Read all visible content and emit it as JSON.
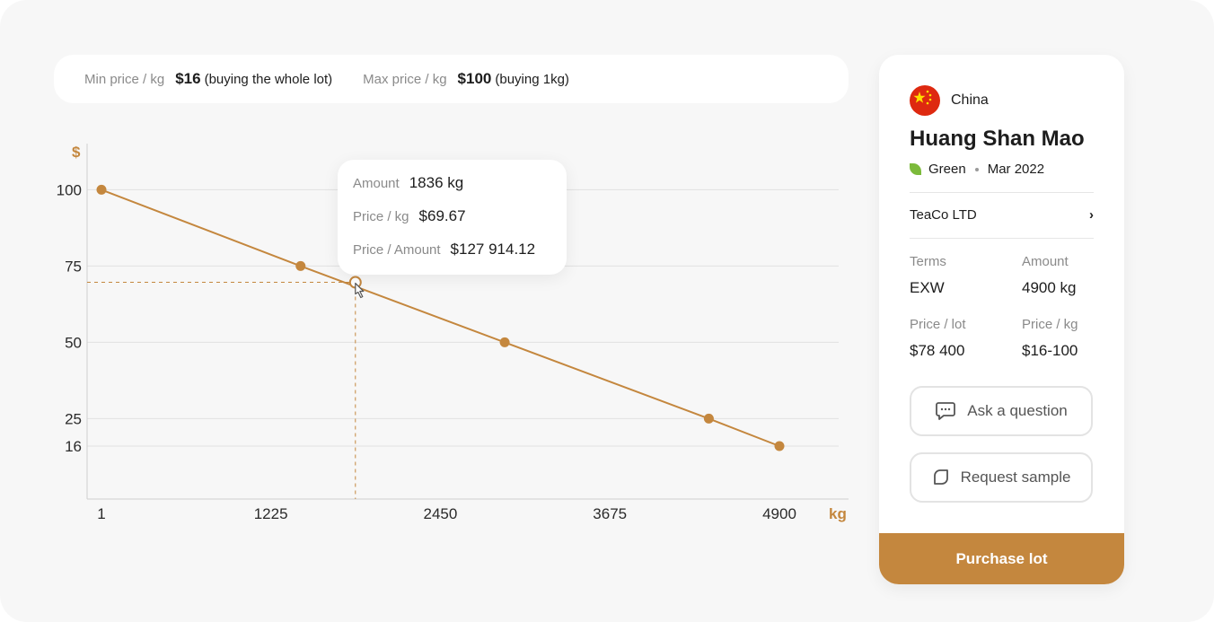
{
  "price_bar": {
    "min_label": "Min price / kg",
    "min_value": "$16",
    "min_note": "(buying the whole lot)",
    "max_label": "Max price / kg",
    "max_value": "$100",
    "max_note": "(buying 1kg)"
  },
  "chart_data": {
    "type": "line",
    "y_unit": "$",
    "x_unit": "kg",
    "x_ticks": [
      1,
      1225,
      2450,
      3675,
      4900
    ],
    "y_ticks": [
      16,
      25,
      50,
      75,
      100
    ],
    "xlim": [
      1,
      4900
    ],
    "ylim": [
      16,
      100
    ],
    "grid": true,
    "points": [
      {
        "x": 1,
        "y": 100
      },
      {
        "x": 1440,
        "y": 75
      },
      {
        "x": 2915,
        "y": 50
      },
      {
        "x": 4390,
        "y": 25
      },
      {
        "x": 4900,
        "y": 16
      }
    ],
    "hover_point": {
      "x": 1836,
      "y": 69.67
    },
    "color": "#c4873e"
  },
  "tooltip": {
    "amount_label": "Amount",
    "amount_value": "1836 kg",
    "price_kg_label": "Price / kg",
    "price_kg_value": "$69.67",
    "price_amount_label": "Price / Amount",
    "price_amount_value": "$127 914.12"
  },
  "card": {
    "country": "China",
    "title": "Huang Shan Mao",
    "type": "Green",
    "date": "Mar 2022",
    "seller": "TeaCo LTD",
    "terms_label": "Terms",
    "terms_value": "EXW",
    "amount_label": "Amount",
    "amount_value": "4900 kg",
    "price_lot_label": "Price / lot",
    "price_lot_value": "$78 400",
    "price_kg_label": "Price / kg",
    "price_kg_value": "$16-100",
    "ask_button": "Ask a question",
    "sample_button": "Request sample",
    "purchase_button": "Purchase lot"
  },
  "colors": {
    "accent": "#c4873e",
    "leaf": "#7cba3b",
    "flag_red": "#de2910",
    "flag_yellow": "#ffde00"
  },
  "icons": [
    "china-flag-icon",
    "leaf-icon",
    "chevron-right-icon",
    "chat-icon",
    "sample-icon",
    "cursor-hand-icon"
  ]
}
